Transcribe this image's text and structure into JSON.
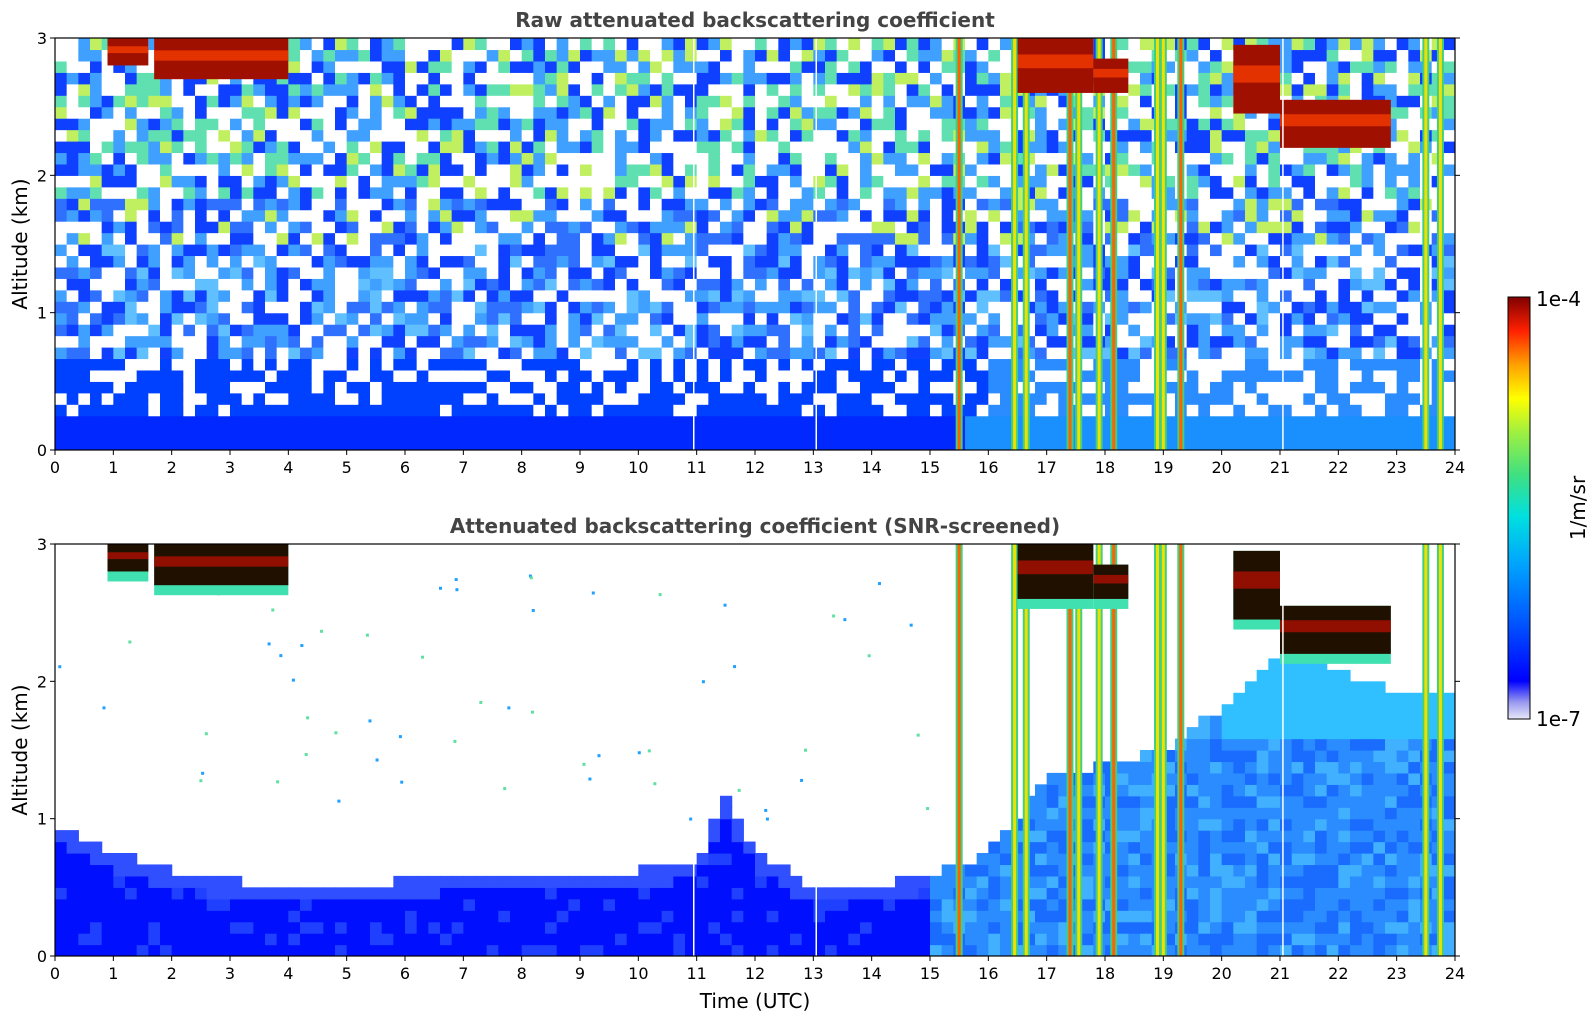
{
  "chart_data": [
    {
      "type": "heatmap",
      "title": "Raw attenuated backscattering coefficient",
      "xlabel": "",
      "ylabel": "Altitude (km)",
      "xlim": [
        0,
        24
      ],
      "ylim": [
        0,
        3
      ],
      "xticks": [
        "0",
        "1",
        "2",
        "3",
        "4",
        "5",
        "6",
        "7",
        "8",
        "9",
        "10",
        "11",
        "12",
        "13",
        "14",
        "15",
        "16",
        "17",
        "18",
        "19",
        "20",
        "21",
        "22",
        "23",
        "24"
      ],
      "yticks": [
        "0",
        "1",
        "2",
        "3"
      ],
      "grid": false,
      "screened": false
    },
    {
      "type": "heatmap",
      "title": "Attenuated backscattering coefficient (SNR-screened)",
      "xlabel": "Time (UTC)",
      "ylabel": "Altitude (km)",
      "xlim": [
        0,
        24
      ],
      "ylim": [
        0,
        3
      ],
      "xticks": [
        "0",
        "1",
        "2",
        "3",
        "4",
        "5",
        "6",
        "7",
        "8",
        "9",
        "10",
        "11",
        "12",
        "13",
        "14",
        "15",
        "16",
        "17",
        "18",
        "19",
        "20",
        "21",
        "22",
        "23",
        "24"
      ],
      "yticks": [
        "0",
        "1",
        "2",
        "3"
      ],
      "grid": false,
      "screened": true
    }
  ],
  "colorbar": {
    "label": "1/m/sr",
    "max_label": "1e-4",
    "min_label": "1e-7",
    "scale": "log",
    "colormap": "jet",
    "colors": [
      "#e8e8f8",
      "#b8b8f0",
      "#8080f0",
      "#0000ff",
      "#0050ff",
      "#00a0ff",
      "#00e0e0",
      "#40e080",
      "#a0f040",
      "#ffff00",
      "#ffc000",
      "#ff6000",
      "#e00000",
      "#800000"
    ]
  },
  "features": {
    "clouds": [
      {
        "t0": 0.9,
        "t1": 1.6,
        "alt_base": 2.8,
        "alt_top": 3.0
      },
      {
        "t0": 1.7,
        "t1": 4.0,
        "alt_base": 2.7,
        "alt_top": 3.0
      },
      {
        "t0": 16.5,
        "t1": 17.8,
        "alt_base": 2.6,
        "alt_top": 3.0
      },
      {
        "t0": 17.8,
        "t1": 18.4,
        "alt_base": 2.6,
        "alt_top": 2.85
      },
      {
        "t0": 20.2,
        "t1": 21.0,
        "alt_base": 2.45,
        "alt_top": 2.95
      },
      {
        "t0": 21.0,
        "t1": 22.9,
        "alt_base": 2.2,
        "alt_top": 2.55
      }
    ],
    "precipitation_streaks_utc": [
      15.5,
      16.45,
      16.65,
      17.4,
      17.55,
      17.9,
      18.15,
      18.9,
      19.0,
      19.3,
      23.5,
      23.75
    ],
    "missing_data_lines_utc": [
      10.95,
      13.05,
      21.05
    ],
    "screened_boundary_layer_top_km": [
      [
        0,
        0.95
      ],
      [
        1,
        0.75
      ],
      [
        2,
        0.62
      ],
      [
        3,
        0.55
      ],
      [
        4,
        0.52
      ],
      [
        5,
        0.5
      ],
      [
        6,
        0.55
      ],
      [
        7,
        0.6
      ],
      [
        8,
        0.62
      ],
      [
        9,
        0.6
      ],
      [
        10,
        0.62
      ],
      [
        11,
        0.7
      ],
      [
        11.5,
        1.15
      ],
      [
        12,
        0.75
      ],
      [
        13,
        0.5
      ],
      [
        14,
        0.5
      ],
      [
        15,
        0.6
      ],
      [
        16,
        0.75
      ],
      [
        17,
        1.3
      ],
      [
        18,
        1.4
      ],
      [
        19,
        1.5
      ],
      [
        20,
        1.8
      ],
      [
        21,
        2.2
      ],
      [
        22,
        2.1
      ],
      [
        23,
        1.9
      ],
      [
        24,
        1.9
      ]
    ]
  }
}
